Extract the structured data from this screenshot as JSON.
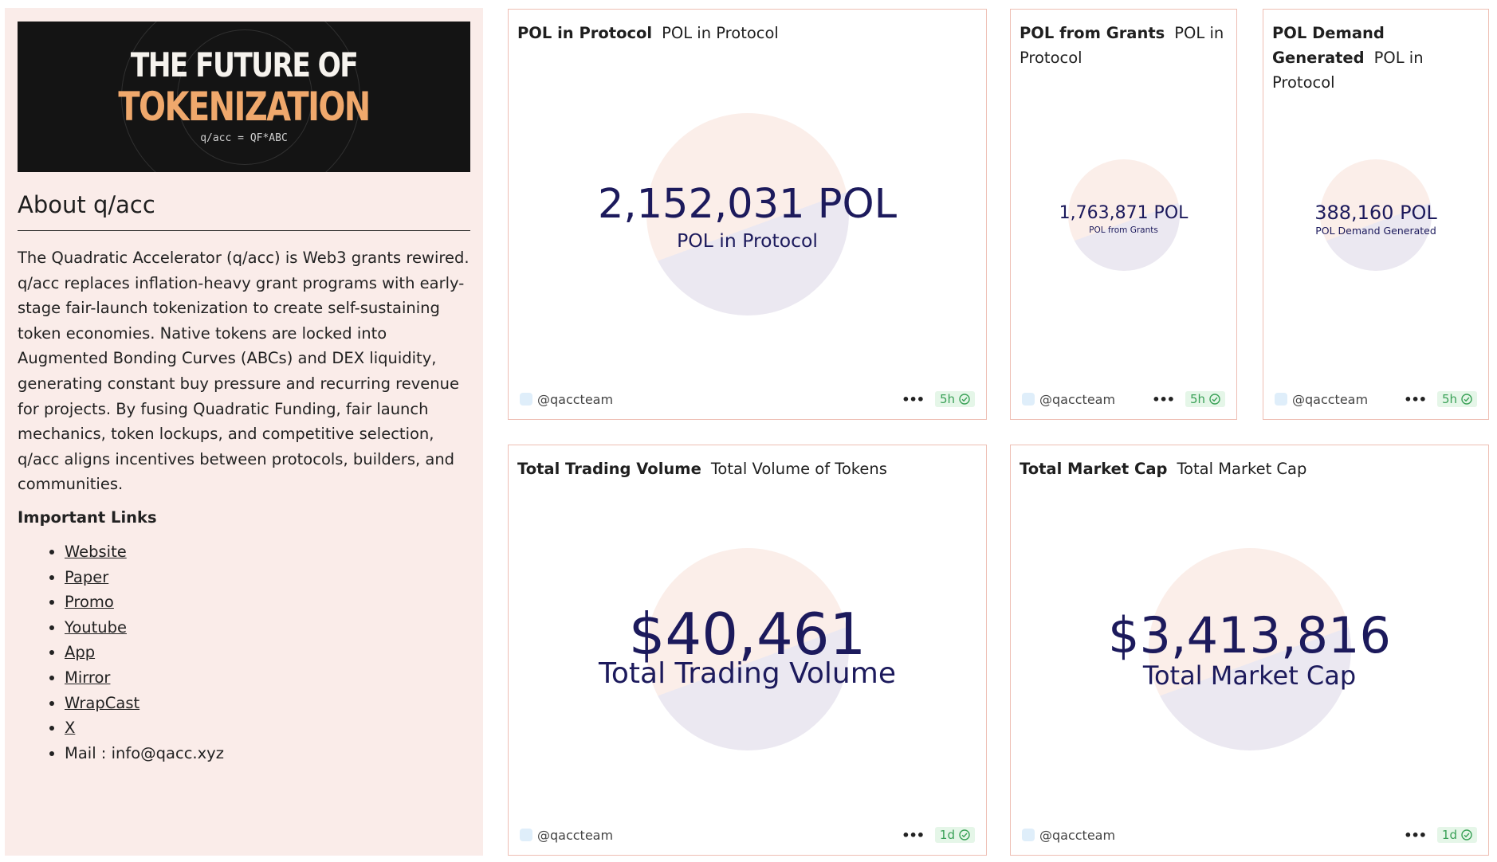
{
  "about": {
    "banner": {
      "line1": "THE FUTURE OF",
      "line2": "TOKENIZATION",
      "line3": "q/acc = QF*ABC"
    },
    "title": "About q/acc",
    "description": "The Quadratic Accelerator (q/acc) is Web3 grants rewired. q/acc replaces inflation-heavy grant programs with early-stage fair-launch tokenization to create self-sustaining token economies. Native tokens are locked into Augmented Bonding Curves (ABCs) and DEX liquidity, generating constant buy pressure and recurring revenue for projects. By fusing Quadratic Funding, fair launch mechanics, token lockups, and competitive selection, q/acc aligns incentives between protocols, builders, and communities.",
    "links_heading": "Important Links",
    "links": [
      {
        "label": "Website"
      },
      {
        "label": "Paper"
      },
      {
        "label": "Promo"
      },
      {
        "label": "Youtube"
      },
      {
        "label": "App"
      },
      {
        "label": "Mirror"
      },
      {
        "label": "WrapCast"
      },
      {
        "label": "X"
      }
    ],
    "mail": "Mail : info@qacc.xyz"
  },
  "cards": [
    {
      "title": "POL in Protocol",
      "subtitle": "POL in Protocol",
      "value": "2,152,031 POL",
      "label": "POL in Protocol",
      "author": "@qaccteam",
      "age": "5h"
    },
    {
      "title": "POL from Grants",
      "subtitle": "POL in Protocol",
      "value": "1,763,871 POL",
      "label": "POL from Grants",
      "author": "@qaccteam",
      "age": "5h"
    },
    {
      "title": "POL Demand Generated",
      "subtitle": "POL in Protocol",
      "value": "388,160 POL",
      "label": "POL Demand Generated",
      "author": "@qaccteam",
      "age": "5h"
    },
    {
      "title": "Total Trading Volume",
      "subtitle": "Total Volume of Tokens",
      "value": "$40,461",
      "label": "Total Trading Volume",
      "author": "@qaccteam",
      "age": "1d"
    },
    {
      "title": "Total Market Cap",
      "subtitle": "Total Market Cap",
      "value": "$3,413,816",
      "label": "Total Market Cap",
      "author": "@qaccteam",
      "age": "1d"
    }
  ],
  "icons": {
    "dots": "more-options-icon",
    "check": "check-circle-icon"
  },
  "colors": {
    "card_border": "#eebeb3",
    "sidebar_bg": "#faece9",
    "value_text": "#1c1a5c",
    "badge_green": "#3aa157"
  }
}
